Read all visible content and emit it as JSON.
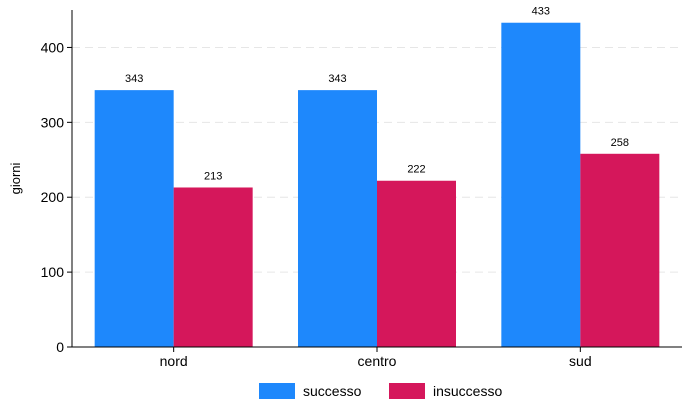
{
  "chart_data": {
    "type": "bar",
    "categories": [
      "nord",
      "centro",
      "sud"
    ],
    "series": [
      {
        "name": "successo",
        "values": [
          343,
          343,
          433
        ],
        "color": "#1e88fc"
      },
      {
        "name": "insuccesso",
        "values": [
          213,
          222,
          258
        ],
        "color": "#d5175b"
      }
    ],
    "ylabel": "giorni",
    "xlabel": "",
    "ylim": [
      0,
      450
    ],
    "yticks": [
      0,
      100,
      200,
      300,
      400
    ],
    "grid": true,
    "legend_position": "bottom"
  }
}
